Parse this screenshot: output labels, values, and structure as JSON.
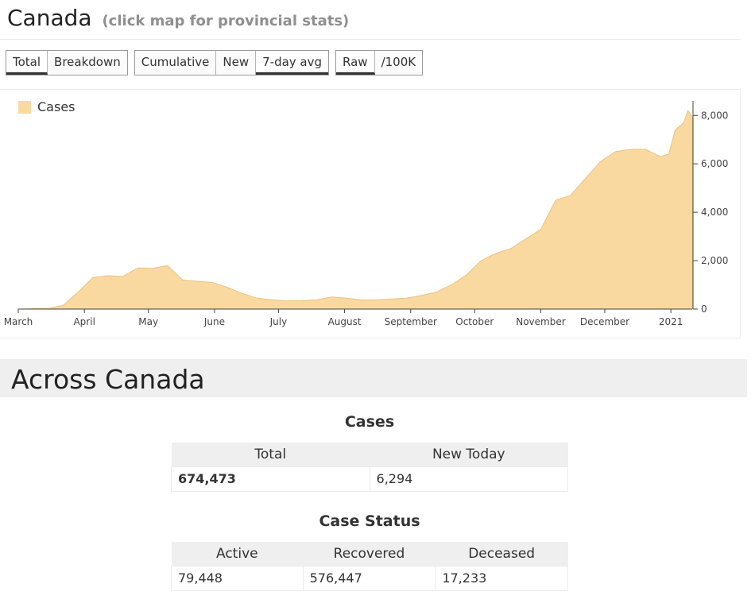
{
  "header": {
    "title": "Canada",
    "subtitle": "(click map for provincial stats)"
  },
  "controls": {
    "group1": [
      {
        "label": "Total",
        "active": true
      },
      {
        "label": "Breakdown",
        "active": false
      }
    ],
    "group2": [
      {
        "label": "Cumulative",
        "active": false
      },
      {
        "label": "New",
        "active": false
      },
      {
        "label": "7-day avg",
        "active": true
      }
    ],
    "group3": [
      {
        "label": "Raw",
        "active": true
      },
      {
        "label": "/100K",
        "active": false
      }
    ]
  },
  "chart_data": {
    "type": "area",
    "series": [
      {
        "name": "Cases",
        "color": "#fad9a0"
      }
    ],
    "x_ticks": [
      "March",
      "April",
      "May",
      "June",
      "July",
      "August",
      "September",
      "October",
      "November",
      "December",
      "2021"
    ],
    "y_ticks": [
      "0",
      "2,000",
      "4,000",
      "6,000",
      "8,000"
    ],
    "ylim": [
      0,
      8600
    ],
    "x_values": [
      "Mar 1",
      "Mar 15",
      "Mar 22",
      "Mar 29",
      "Apr 5",
      "Apr 12",
      "Apr 19",
      "Apr 26",
      "May 3",
      "May 10",
      "May 17",
      "May 24",
      "May 31",
      "Jun 7",
      "Jun 14",
      "Jun 21",
      "Jun 28",
      "Jul 5",
      "Jul 12",
      "Jul 19",
      "Jul 26",
      "Aug 2",
      "Aug 9",
      "Aug 16",
      "Aug 23",
      "Aug 30",
      "Sep 6",
      "Sep 13",
      "Sep 20",
      "Sep 27",
      "Oct 4",
      "Oct 11",
      "Oct 18",
      "Oct 25",
      "Nov 1",
      "Nov 8",
      "Nov 15",
      "Nov 22",
      "Nov 29",
      "Dec 6",
      "Dec 13",
      "Dec 20",
      "Dec 27",
      "Dec 31",
      "Jan 3",
      "Jan 7",
      "Jan 9",
      "Jan 11"
    ],
    "values": [
      0,
      30,
      150,
      700,
      1300,
      1380,
      1350,
      1700,
      1680,
      1800,
      1200,
      1150,
      1100,
      900,
      650,
      450,
      380,
      340,
      350,
      380,
      500,
      450,
      380,
      380,
      420,
      450,
      560,
      700,
      1000,
      1400,
      2000,
      2300,
      2500,
      2900,
      3300,
      4500,
      4700,
      5400,
      6100,
      6500,
      6600,
      6600,
      6300,
      6400,
      7400,
      7700,
      8200,
      7950
    ]
  },
  "across": {
    "title": "Across Canada"
  },
  "cases": {
    "title": "Cases",
    "headers": [
      "Total",
      "New Today"
    ],
    "values": [
      "674,473",
      "6,294"
    ]
  },
  "status": {
    "title": "Case Status",
    "headers": [
      "Active",
      "Recovered",
      "Deceased"
    ],
    "values": [
      "79,448",
      "576,447",
      "17,233"
    ]
  }
}
